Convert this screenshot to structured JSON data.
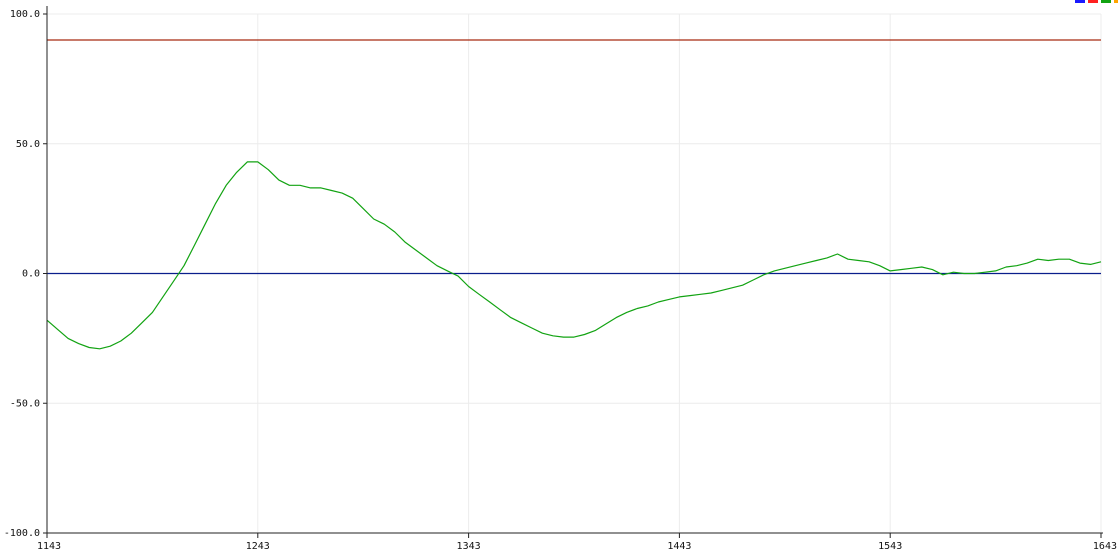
{
  "chart_data": {
    "type": "line",
    "title": "",
    "xlabel": "",
    "ylabel": "",
    "xlim": [
      1143,
      1643
    ],
    "ylim": [
      -100,
      100
    ],
    "x_ticks": [
      1143,
      1243,
      1343,
      1443,
      1543,
      1643
    ],
    "x_tick_labels": [
      "1143",
      "1243",
      "1343",
      "1443",
      "1543",
      "1643"
    ],
    "y_ticks": [
      100,
      50,
      0,
      -50,
      -100
    ],
    "y_tick_labels": [
      "100.0",
      "50.0",
      "0.0",
      "-50.0",
      "-100.0"
    ],
    "grid": true,
    "legend_position": "top-right",
    "legend_colors": [
      "#1a1aff",
      "#ff2020",
      "#12a312",
      "#ffa500"
    ],
    "series": [
      {
        "color": "#0a1e8c",
        "x": [
          1143,
          1643
        ],
        "y": [
          0,
          0
        ]
      },
      {
        "color": "#a82a10",
        "x": [
          1143,
          1643
        ],
        "y": [
          90,
          90
        ]
      },
      {
        "color": "#12a312",
        "x": [
          1143,
          1148,
          1153,
          1158,
          1163,
          1168,
          1173,
          1178,
          1183,
          1188,
          1193,
          1198,
          1203,
          1208,
          1213,
          1218,
          1223,
          1228,
          1233,
          1238,
          1243,
          1248,
          1253,
          1258,
          1263,
          1268,
          1273,
          1278,
          1283,
          1288,
          1293,
          1298,
          1303,
          1308,
          1313,
          1318,
          1323,
          1328,
          1333,
          1338,
          1343,
          1348,
          1353,
          1358,
          1363,
          1368,
          1373,
          1378,
          1383,
          1388,
          1393,
          1398,
          1403,
          1408,
          1413,
          1418,
          1423,
          1428,
          1433,
          1438,
          1443,
          1448,
          1453,
          1458,
          1463,
          1468,
          1473,
          1478,
          1483,
          1488,
          1493,
          1498,
          1503,
          1508,
          1513,
          1518,
          1523,
          1528,
          1533,
          1538,
          1543,
          1548,
          1553,
          1558,
          1563,
          1568,
          1573,
          1578,
          1583,
          1588,
          1593,
          1598,
          1603,
          1608,
          1613,
          1618,
          1623,
          1628,
          1633,
          1638,
          1643
        ],
        "y": [
          -18,
          -21.5,
          -25,
          -27,
          -28.5,
          -29,
          -28,
          -26,
          -23,
          -19,
          -15,
          -9,
          -3,
          3,
          11,
          19,
          27,
          34,
          39,
          43,
          43,
          40,
          36,
          34,
          34,
          33,
          33,
          32,
          31,
          29,
          25,
          21,
          19,
          16,
          12,
          9,
          6,
          3,
          1,
          -1,
          -5,
          -8,
          -11,
          -14,
          -17,
          -19,
          -21,
          -23,
          -24,
          -24.5,
          -24.5,
          -23.5,
          -22,
          -19.5,
          -17,
          -15,
          -13.5,
          -12.5,
          -11,
          -10,
          -9,
          -8.5,
          -8,
          -7.5,
          -6.5,
          -5.5,
          -4.5,
          -2.5,
          -0.5,
          1,
          2,
          3,
          4,
          5,
          6,
          7.5,
          5.5,
          5,
          4.5,
          3,
          1,
          1.5,
          2,
          2.5,
          1.5,
          -0.5,
          0.5,
          0,
          0,
          0.5,
          1,
          2.5,
          3,
          4,
          5.5,
          5,
          5.5,
          5.5,
          4,
          3.5,
          4.5
        ]
      }
    ]
  }
}
